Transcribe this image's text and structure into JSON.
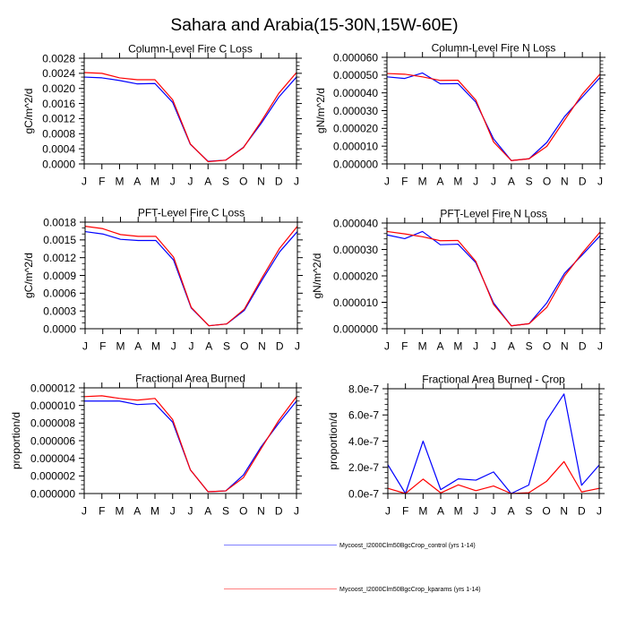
{
  "title": "Sahara and Arabia(15-30N,15W-60E)",
  "colors": {
    "control": "#0000ff",
    "kparams": "#ff0000",
    "axis": "#000000",
    "background": "#ffffff"
  },
  "legend": [
    {
      "label": "Mycoost_I2000Clm50BgcCrop_control (yrs 1-14)",
      "color": "#0000ff",
      "line_color": "#8080ff"
    },
    {
      "label": "Mycoost_I2000Clm50BgcCrop_kparams (yrs 1-14)",
      "color": "#ff0000",
      "line_color": "#ff8080"
    }
  ],
  "chart_data": [
    {
      "type": "line",
      "title": "Column-Level Fire C Loss",
      "xlabel": "",
      "ylabel": "gC/m^2/d",
      "ylim": [
        0,
        0.0028
      ],
      "yticks": [
        0,
        0.0004,
        0.0008,
        0.0012,
        0.0016,
        0.002,
        0.0024,
        0.0028
      ],
      "ytick_labels": [
        "0.0000",
        "0.0004",
        "0.0008",
        "0.0012",
        "0.0016",
        "0.0020",
        "0.0024",
        "0.0028"
      ],
      "categories": [
        "J",
        "F",
        "M",
        "A",
        "M",
        "J",
        "J",
        "A",
        "S",
        "O",
        "N",
        "D",
        "J"
      ],
      "grid": false,
      "series": [
        {
          "legend_entry": 0,
          "values": [
            0.0023,
            0.00228,
            0.00221,
            0.00212,
            0.00213,
            0.00163,
            0.00052,
            7e-05,
            0.0001,
            0.00044,
            0.00107,
            0.00177,
            0.0023
          ]
        },
        {
          "legend_entry": 1,
          "values": [
            0.00242,
            0.0024,
            0.00228,
            0.00223,
            0.00223,
            0.0017,
            0.00053,
            6e-05,
            0.0001,
            0.00043,
            0.00112,
            0.00187,
            0.00242
          ]
        }
      ]
    },
    {
      "type": "line",
      "title": "Column-Level Fire N Loss",
      "xlabel": "",
      "ylabel": "gN/m^2/d",
      "ylim": [
        0,
        6e-05
      ],
      "yticks": [
        0,
        1e-05,
        2e-05,
        3e-05,
        4e-05,
        5e-05,
        6e-05
      ],
      "ytick_labels": [
        "0.000000",
        "0.000010",
        "0.000020",
        "0.000030",
        "0.000040",
        "0.000050",
        "0.000060"
      ],
      "categories": [
        "J",
        "F",
        "M",
        "A",
        "M",
        "J",
        "J",
        "A",
        "S",
        "O",
        "N",
        "D",
        "J"
      ],
      "grid": false,
      "series": [
        {
          "legend_entry": 0,
          "values": [
            4.9e-05,
            4.81e-05,
            5.12e-05,
            4.51e-05,
            4.52e-05,
            3.48e-05,
            1.41e-05,
            1.9e-06,
            2.9e-06,
            1.21e-05,
            2.67e-05,
            3.77e-05,
            4.87e-05
          ]
        },
        {
          "legend_entry": 1,
          "values": [
            5.09e-05,
            5.05e-05,
            4.9e-05,
            4.7e-05,
            4.71e-05,
            3.6e-05,
            1.24e-05,
            1.9e-06,
            2.9e-06,
            9.9e-06,
            2.47e-05,
            3.93e-05,
            5.06e-05
          ]
        }
      ]
    },
    {
      "type": "line",
      "title": "PFT-Level Fire C Loss",
      "xlabel": "",
      "ylabel": "gC/m^2/d",
      "ylim": [
        0,
        0.0018
      ],
      "yticks": [
        0,
        0.0003,
        0.0006,
        0.0009,
        0.0012,
        0.0015,
        0.0018
      ],
      "ytick_labels": [
        "0.0000",
        "0.0003",
        "0.0006",
        "0.0009",
        "0.0012",
        "0.0015",
        "0.0018"
      ],
      "categories": [
        "J",
        "F",
        "M",
        "A",
        "M",
        "J",
        "J",
        "A",
        "S",
        "O",
        "N",
        "D",
        "J"
      ],
      "grid": false,
      "series": [
        {
          "legend_entry": 0,
          "values": [
            0.00164,
            0.0016,
            0.00151,
            0.00149,
            0.00149,
            0.00116,
            0.00035,
            5e-05,
            8e-05,
            0.00031,
            0.00082,
            0.0013,
            0.00164
          ]
        },
        {
          "legend_entry": 1,
          "values": [
            0.00173,
            0.00169,
            0.00159,
            0.00156,
            0.00156,
            0.00121,
            0.00036,
            5e-05,
            8e-05,
            0.00033,
            0.00086,
            0.00136,
            0.00173
          ]
        }
      ]
    },
    {
      "type": "line",
      "title": "PFT-Level Fire N Loss",
      "xlabel": "",
      "ylabel": "gN/m^2/d",
      "ylim": [
        0,
        4e-05
      ],
      "yticks": [
        0,
        1e-05,
        2e-05,
        3e-05,
        4e-05
      ],
      "ytick_labels": [
        "0.000000",
        "0.000010",
        "0.000020",
        "0.000030",
        "0.000040"
      ],
      "categories": [
        "J",
        "F",
        "M",
        "A",
        "M",
        "J",
        "J",
        "A",
        "S",
        "O",
        "N",
        "D",
        "J"
      ],
      "grid": false,
      "series": [
        {
          "legend_entry": 0,
          "values": [
            3.55e-05,
            3.41e-05,
            3.68e-05,
            3.18e-05,
            3.2e-05,
            2.5e-05,
            9.8e-06,
            1.1e-06,
            1.9e-06,
            9.8e-06,
            2.1e-05,
            2.8e-05,
            3.52e-05
          ]
        },
        {
          "legend_entry": 1,
          "values": [
            3.68e-05,
            3.59e-05,
            3.48e-05,
            3.33e-05,
            3.34e-05,
            2.55e-05,
            9.2e-06,
            1.1e-06,
            1.9e-06,
            8.1e-06,
            2e-05,
            2.87e-05,
            3.66e-05
          ]
        }
      ]
    },
    {
      "type": "line",
      "title": "Fractional Area Burned",
      "xlabel": "",
      "ylabel": "proportion/d",
      "ylim": [
        0,
        1.2e-05
      ],
      "yticks": [
        0,
        2e-06,
        4e-06,
        6e-06,
        8e-06,
        1e-05,
        1.2e-05
      ],
      "ytick_labels": [
        "0.000000",
        "0.000002",
        "0.000004",
        "0.000006",
        "0.000008",
        "0.000010",
        "0.000012"
      ],
      "categories": [
        "J",
        "F",
        "M",
        "A",
        "M",
        "J",
        "J",
        "A",
        "S",
        "O",
        "N",
        "D",
        "J"
      ],
      "grid": false,
      "series": [
        {
          "legend_entry": 0,
          "values": [
            1.05e-05,
            1.05e-05,
            1.05e-05,
            1.01e-05,
            1.02e-05,
            8.1e-06,
            2.7e-06,
            2e-07,
            3e-07,
            2.1e-06,
            5.3e-06,
            8e-06,
            1.05e-05
          ]
        },
        {
          "legend_entry": 1,
          "values": [
            1.1e-05,
            1.11e-05,
            1.08e-05,
            1.06e-05,
            1.08e-05,
            8.4e-06,
            2.7e-06,
            2e-07,
            3e-07,
            1.8e-06,
            5.1e-06,
            8.3e-06,
            1.1e-05
          ]
        }
      ]
    },
    {
      "type": "line",
      "title": "Fractional Area Burned - Crop",
      "xlabel": "",
      "ylabel": "proportion/d",
      "ylim": [
        0,
        8e-07
      ],
      "yticks": [
        0,
        2e-07,
        4e-07,
        6e-07,
        8e-07
      ],
      "ytick_labels": [
        "0.0e-7",
        "2.0e-7",
        "4.0e-7",
        "6.0e-7",
        "8.0e-7"
      ],
      "categories": [
        "J",
        "F",
        "M",
        "A",
        "M",
        "J",
        "J",
        "A",
        "S",
        "O",
        "N",
        "D",
        "J"
      ],
      "grid": false,
      "series": [
        {
          "legend_entry": 0,
          "values": [
            2.2e-07,
            0.0,
            4e-07,
            3e-08,
            1.12e-07,
            1.02e-07,
            1.65e-07,
            0.0,
            6.5e-08,
            5.55e-07,
            7.6e-07,
            6.3e-08,
            2.18e-07
          ]
        },
        {
          "legend_entry": 1,
          "values": [
            4e-08,
            0.0,
            1.1e-07,
            5e-09,
            6.6e-08,
            2.2e-08,
            5.8e-08,
            0.0,
            6e-09,
            9.2e-08,
            2.44e-07,
            1.2e-08,
            4e-08
          ]
        }
      ]
    }
  ]
}
